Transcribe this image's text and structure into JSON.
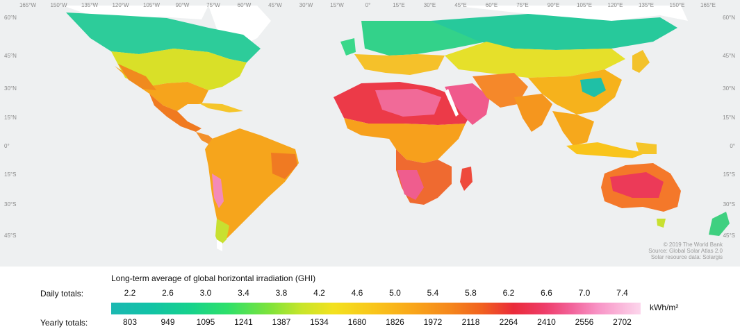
{
  "map": {
    "lon_labels": [
      "165°W",
      "150°W",
      "135°W",
      "120°W",
      "105°W",
      "90°W",
      "75°W",
      "60°W",
      "45°W",
      "30°W",
      "15°W",
      "0°",
      "15°E",
      "30°E",
      "45°E",
      "60°E",
      "75°E",
      "90°E",
      "105°E",
      "120°E",
      "135°E",
      "150°E",
      "165°E"
    ],
    "lat_labels_left": [
      "60°N",
      "45°N",
      "30°N",
      "15°N",
      "0°",
      "15°S",
      "30°S",
      "45°S"
    ],
    "lat_labels_right": [
      "60°N",
      "45°N",
      "30°N",
      "15°N",
      "0°",
      "15°S",
      "30°S",
      "45°S"
    ],
    "attribution": [
      "© 2019 The World Bank",
      "Source: Global Solar Atlas 2.0",
      "Solar resource data: Solargis"
    ]
  },
  "legend": {
    "title": "Long-term average of global horizontal irradiation (GHI)",
    "daily_label": "Daily totals:",
    "yearly_label": "Yearly totals:",
    "daily_values": [
      "2.2",
      "2.6",
      "3.0",
      "3.4",
      "3.8",
      "4.2",
      "4.6",
      "5.0",
      "5.4",
      "5.8",
      "6.2",
      "6.6",
      "7.0",
      "7.4"
    ],
    "yearly_values": [
      "803",
      "949",
      "1095",
      "1241",
      "1387",
      "1534",
      "1680",
      "1826",
      "1972",
      "2118",
      "2264",
      "2410",
      "2556",
      "2702"
    ],
    "unit": "kWh/m²"
  }
}
